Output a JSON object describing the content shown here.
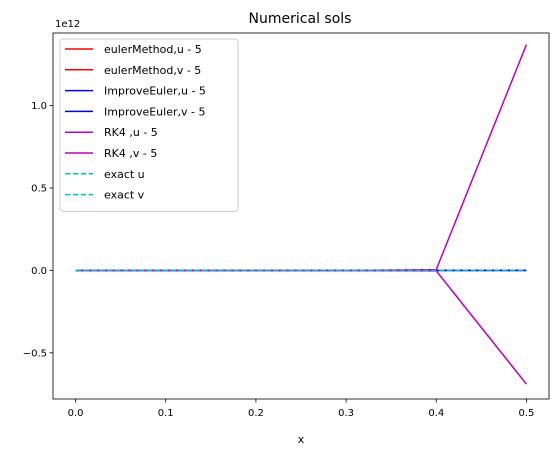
{
  "chart_data": {
    "type": "line",
    "title": "Numerical sols",
    "xlabel": "x",
    "ylabel": "",
    "y_offset_text": "1e12",
    "xlim": [
      -0.025,
      0.525
    ],
    "ylim": [
      -0.78,
      1.44
    ],
    "y_scale_note": "values in units of 1e12",
    "xticks": [
      0.0,
      0.1,
      0.2,
      0.3,
      0.4,
      0.5
    ],
    "xtick_labels": [
      "0.0",
      "0.1",
      "0.2",
      "0.3",
      "0.4",
      "0.5"
    ],
    "yticks": [
      -0.5,
      0.0,
      0.5,
      1.0
    ],
    "ytick_labels": [
      "−0.5",
      "0.0",
      "0.5",
      "1.0"
    ],
    "grid": false,
    "legend_position": "upper-left",
    "x": [
      0.0,
      0.1,
      0.2,
      0.3,
      0.4,
      0.5
    ],
    "series": [
      {
        "name": "eulerMethod,u - 5",
        "color": "#ff0000",
        "dash": "solid",
        "values": [
          0,
          0,
          0,
          0,
          0,
          0
        ]
      },
      {
        "name": "eulerMethod,v - 5",
        "color": "#ff0000",
        "dash": "solid",
        "values": [
          0,
          0,
          0,
          0,
          0,
          0
        ]
      },
      {
        "name": "ImproveEuler,u - 5",
        "color": "#0000ff",
        "dash": "solid",
        "values": [
          0,
          0,
          0,
          0,
          0,
          0
        ]
      },
      {
        "name": "ImproveEuler,v - 5",
        "color": "#0000ff",
        "dash": "solid",
        "values": [
          0,
          0,
          0,
          0,
          0,
          0
        ]
      },
      {
        "name": "RK4 ,u - 5",
        "color": "#bf00bf",
        "dash": "solid",
        "values": [
          0,
          0,
          0,
          0,
          0.005,
          1.37
        ]
      },
      {
        "name": "RK4 ,v - 5",
        "color": "#bf00bf",
        "dash": "solid",
        "values": [
          0,
          0,
          0,
          0,
          -0.003,
          -0.69
        ]
      },
      {
        "name": "exact u",
        "color": "#00bfbf",
        "dash": "dashed",
        "values": [
          0,
          0,
          0,
          0,
          0,
          0
        ]
      },
      {
        "name": "exact v",
        "color": "#00bfbf",
        "dash": "dashed",
        "values": [
          0,
          0,
          0,
          0,
          0,
          0
        ]
      }
    ]
  }
}
